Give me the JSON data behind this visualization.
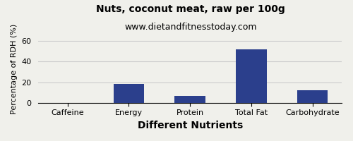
{
  "title": "Nuts, coconut meat, raw per 100g",
  "subtitle": "www.dietandfitnesstoday.com",
  "xlabel": "Different Nutrients",
  "ylabel": "Percentage of RDH (%)",
  "categories": [
    "Caffeine",
    "Energy",
    "Protein",
    "Total Fat",
    "Carbohydrate"
  ],
  "values": [
    0,
    18,
    6.5,
    52,
    12.5
  ],
  "bar_color": "#2b3f8c",
  "ylim": [
    0,
    65
  ],
  "yticks": [
    0,
    20,
    40,
    60
  ],
  "background_color": "#f0f0eb",
  "grid_color": "#cccccc",
  "title_fontsize": 10,
  "subtitle_fontsize": 9,
  "xlabel_fontsize": 10,
  "ylabel_fontsize": 8,
  "tick_fontsize": 8
}
